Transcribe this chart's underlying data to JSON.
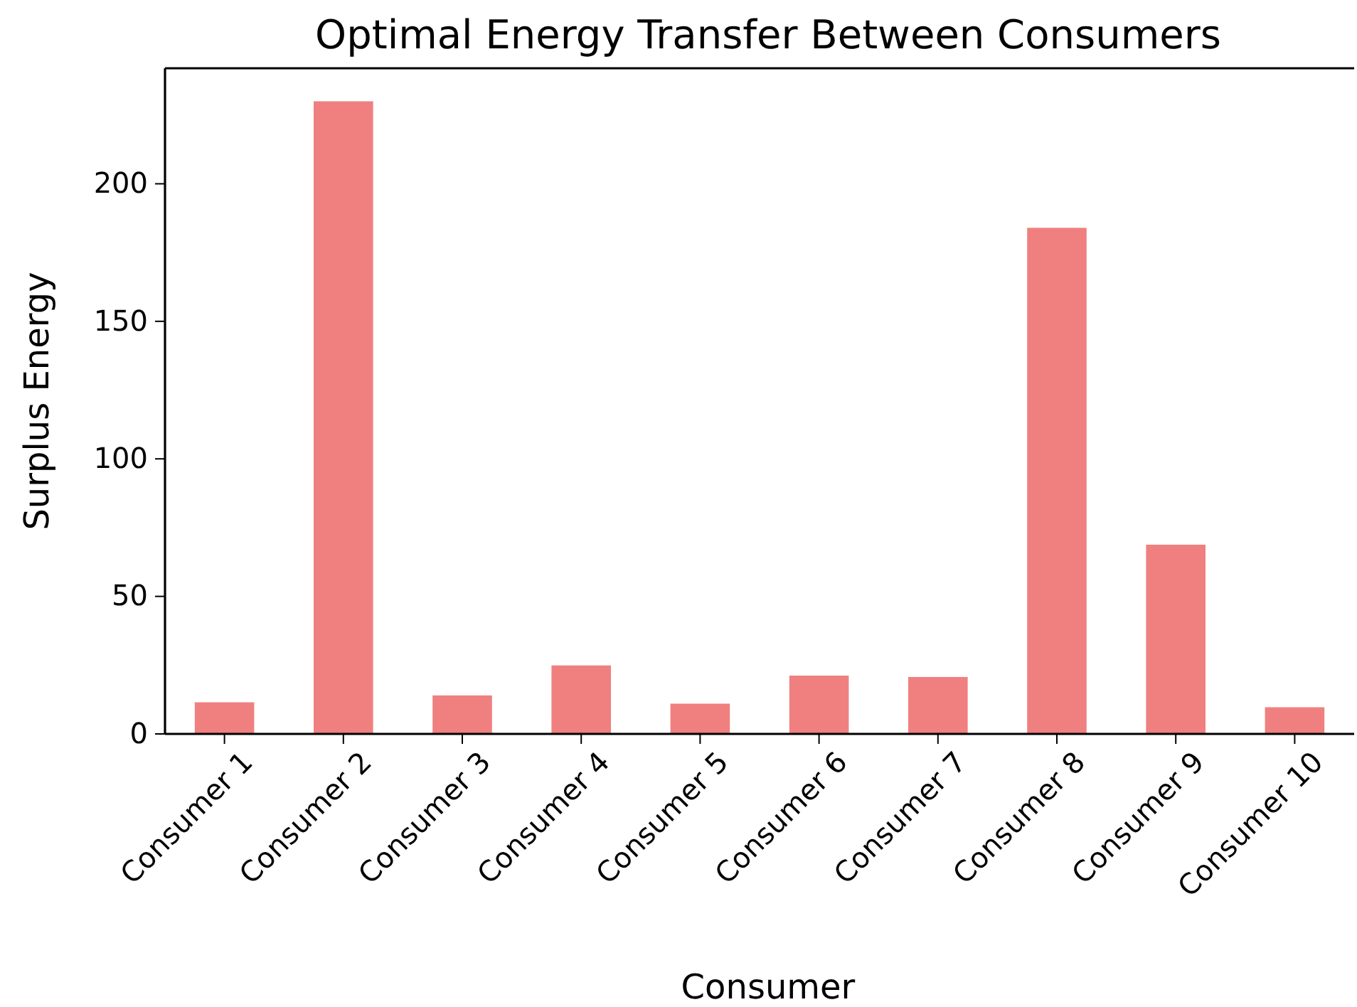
{
  "chart_data": {
    "type": "bar",
    "title": "Optimal Energy Transfer Between Consumers",
    "xlabel": "Consumer",
    "ylabel": "Surplus Energy",
    "categories": [
      "Consumer 1",
      "Consumer 2",
      "Consumer 3",
      "Consumer 4",
      "Consumer 5",
      "Consumer 6",
      "Consumer 7",
      "Consumer 8",
      "Consumer 9",
      "Consumer 10"
    ],
    "values": [
      11.5,
      230,
      14,
      24.9,
      11,
      21.2,
      20.7,
      184,
      68.8,
      9.7
    ],
    "color": "#f08080",
    "ylim": [
      0,
      242
    ],
    "yticks": [
      0,
      50,
      100,
      150,
      200
    ],
    "grid": false
  }
}
